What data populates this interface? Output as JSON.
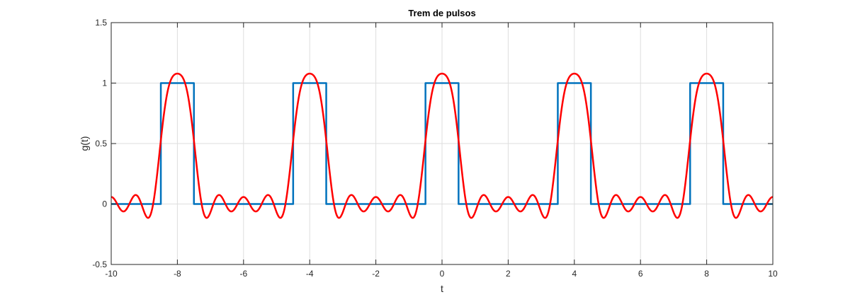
{
  "chart_data": {
    "type": "line",
    "title": "Trem de pulsos",
    "xlabel": "t",
    "ylabel": "g(t)",
    "xlim": [
      -10,
      10
    ],
    "ylim": [
      -0.5,
      1.5
    ],
    "xticks": [
      -10,
      -8,
      -6,
      -4,
      -2,
      0,
      2,
      4,
      6,
      8,
      10
    ],
    "yticks": [
      -0.5,
      0,
      0.5,
      1,
      1.5
    ],
    "xtick_labels": [
      "-10",
      "-8",
      "-6",
      "-4",
      "-2",
      "0",
      "2",
      "4",
      "6",
      "8",
      "10"
    ],
    "ytick_labels": [
      "-0.5",
      "0",
      "0.5",
      "1",
      "1.5"
    ],
    "grid": true,
    "series": [
      {
        "color": "#0072BD",
        "style": "step",
        "x": [
          -10,
          -8.5,
          -8.5,
          -7.5,
          -7.5,
          -4.5,
          -4.5,
          -3.5,
          -3.5,
          -0.5,
          -0.5,
          0.5,
          0.5,
          3.5,
          3.5,
          4.5,
          4.5,
          7.5,
          7.5,
          8.5,
          8.5,
          10
        ],
        "y": [
          0,
          0,
          1,
          1,
          0,
          0,
          1,
          1,
          0,
          0,
          1,
          1,
          0,
          0,
          1,
          1,
          0,
          0,
          1,
          1,
          0,
          0
        ]
      },
      {
        "color": "#FF0000",
        "style": "smooth",
        "period": 4,
        "pulse_width": 1,
        "harmonics": 5,
        "x_range": [
          -10,
          10
        ]
      }
    ]
  }
}
